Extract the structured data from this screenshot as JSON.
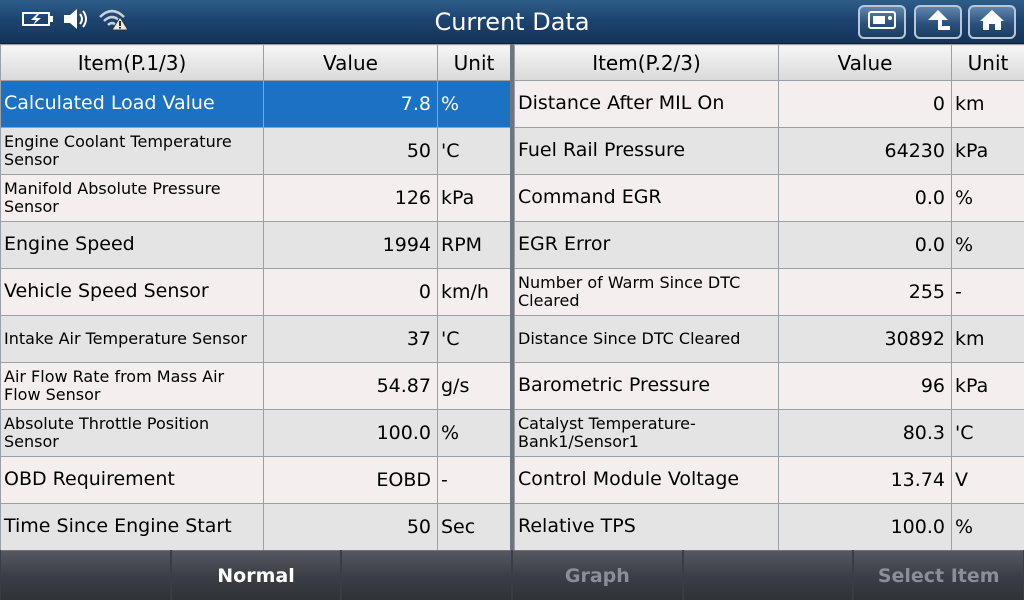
{
  "titlebar": {
    "title": "Current Data",
    "status_icons": [
      "battery-icon",
      "speaker-icon",
      "wifi-warning-icon"
    ],
    "buttons": [
      "screenshot-icon",
      "back-arrow-icon",
      "home-icon"
    ]
  },
  "left_table": {
    "headers": {
      "item": "Item(P.1/3)",
      "value": "Value",
      "unit": "Unit"
    },
    "rows": [
      {
        "item": "Calculated Load Value",
        "value": "7.8",
        "unit": "%",
        "selected": true
      },
      {
        "item": "Engine Coolant Temperature Sensor",
        "value": "50",
        "unit": "'C"
      },
      {
        "item": "Manifold Absolute Pressure Sensor",
        "value": "126",
        "unit": "kPa"
      },
      {
        "item": "Engine Speed",
        "value": "1994",
        "unit": "RPM"
      },
      {
        "item": "Vehicle Speed Sensor",
        "value": "0",
        "unit": "km/h"
      },
      {
        "item": "Intake Air Temperature Sensor",
        "value": "37",
        "unit": "'C"
      },
      {
        "item": "Air Flow Rate from Mass Air Flow Sensor",
        "value": "54.87",
        "unit": "g/s"
      },
      {
        "item": "Absolute Throttle Position Sensor",
        "value": "100.0",
        "unit": "%"
      },
      {
        "item": "OBD Requirement",
        "value": "EOBD",
        "unit": "-"
      },
      {
        "item": "Time Since Engine Start",
        "value": "50",
        "unit": "Sec"
      }
    ]
  },
  "right_table": {
    "headers": {
      "item": "Item(P.2/3)",
      "value": "Value",
      "unit": "Unit"
    },
    "rows": [
      {
        "item": "Distance After MIL On",
        "value": "0",
        "unit": "km"
      },
      {
        "item": "Fuel Rail Pressure",
        "value": "64230",
        "unit": "kPa"
      },
      {
        "item": "Command EGR",
        "value": "0.0",
        "unit": "%"
      },
      {
        "item": "EGR Error",
        "value": "0.0",
        "unit": "%"
      },
      {
        "item": "Number of Warm Since DTC Cleared",
        "value": "255",
        "unit": "-"
      },
      {
        "item": "Distance Since DTC Cleared",
        "value": "30892",
        "unit": "km"
      },
      {
        "item": "Barometric Pressure",
        "value": "96",
        "unit": "kPa"
      },
      {
        "item": "Catalyst Temperature-Bank1/Sensor1",
        "value": "80.3",
        "unit": "'C"
      },
      {
        "item": "Control Module Voltage",
        "value": "13.74",
        "unit": "V"
      },
      {
        "item": "Relative TPS",
        "value": "100.0",
        "unit": "%"
      }
    ]
  },
  "bottombar": {
    "buttons": [
      {
        "label": "",
        "enabled": true
      },
      {
        "label": "Normal",
        "enabled": true
      },
      {
        "label": "",
        "enabled": true
      },
      {
        "label": "Graph",
        "enabled": false
      },
      {
        "label": "",
        "enabled": true
      },
      {
        "label": "Select Item",
        "enabled": false
      }
    ]
  }
}
